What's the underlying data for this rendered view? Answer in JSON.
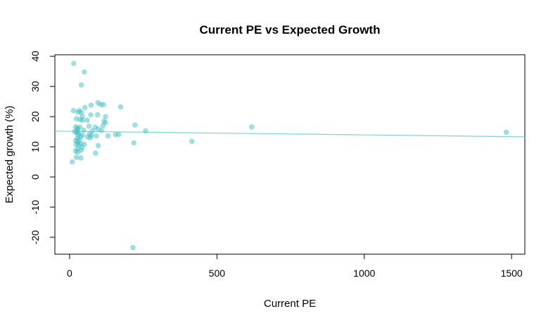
{
  "chart_data": {
    "type": "scatter",
    "title": "Current PE vs Expected Growth",
    "xlabel": "Current PE",
    "ylabel": "Expected growth (%)",
    "xlim": [
      -50,
      1545
    ],
    "ylim": [
      -25.6,
      40.5
    ],
    "xticks": [
      0,
      500,
      1000,
      1500
    ],
    "yticks": [
      -20,
      -10,
      0,
      10,
      20,
      30,
      40
    ],
    "xtick_labels": [
      "0",
      "500",
      "1000",
      "1500"
    ],
    "ytick_labels": [
      "-20",
      "-10",
      "0",
      "10",
      "20",
      "30",
      "40"
    ],
    "grid": false,
    "point_color": "#3fbfc4",
    "line_color": "#7fd3d6",
    "regression_line": {
      "x": [
        -50,
        1545
      ],
      "y": [
        15.2,
        13.3
      ]
    },
    "points": [
      {
        "x": 14,
        "y": 37.6
      },
      {
        "x": 50,
        "y": 34.8
      },
      {
        "x": 40,
        "y": 30.5
      },
      {
        "x": 96,
        "y": 24.6
      },
      {
        "x": 106,
        "y": 24.0
      },
      {
        "x": 115,
        "y": 24.0
      },
      {
        "x": 73,
        "y": 23.8
      },
      {
        "x": 52,
        "y": 23.0
      },
      {
        "x": 173,
        "y": 23.2
      },
      {
        "x": 13,
        "y": 22.0
      },
      {
        "x": 28,
        "y": 21.5
      },
      {
        "x": 34,
        "y": 22.0
      },
      {
        "x": 40,
        "y": 21.3
      },
      {
        "x": 72,
        "y": 20.6
      },
      {
        "x": 95,
        "y": 20.6
      },
      {
        "x": 122,
        "y": 20.0
      },
      {
        "x": 43,
        "y": 20.0
      },
      {
        "x": 23,
        "y": 19.3
      },
      {
        "x": 36,
        "y": 19.0
      },
      {
        "x": 44,
        "y": 18.8
      },
      {
        "x": 60,
        "y": 18.8
      },
      {
        "x": 117,
        "y": 18.5
      },
      {
        "x": 122,
        "y": 18.0
      },
      {
        "x": 113,
        "y": 17.0
      },
      {
        "x": 222,
        "y": 17.2
      },
      {
        "x": 618,
        "y": 16.6
      },
      {
        "x": 20,
        "y": 16.6
      },
      {
        "x": 27,
        "y": 16.2
      },
      {
        "x": 35,
        "y": 16.5
      },
      {
        "x": 66,
        "y": 16.8
      },
      {
        "x": 87,
        "y": 16.5
      },
      {
        "x": 97,
        "y": 15.9
      },
      {
        "x": 27,
        "y": 15.6
      },
      {
        "x": 48,
        "y": 15.5
      },
      {
        "x": 78,
        "y": 15.3
      },
      {
        "x": 108,
        "y": 15.4
      },
      {
        "x": 258,
        "y": 15.3
      },
      {
        "x": 1482,
        "y": 14.8
      },
      {
        "x": 17,
        "y": 15.0
      },
      {
        "x": 24,
        "y": 14.8
      },
      {
        "x": 31,
        "y": 14.6
      },
      {
        "x": 68,
        "y": 14.3
      },
      {
        "x": 156,
        "y": 14.0
      },
      {
        "x": 167,
        "y": 14.1
      },
      {
        "x": 28,
        "y": 14.0
      },
      {
        "x": 44,
        "y": 13.8
      },
      {
        "x": 74,
        "y": 13.8
      },
      {
        "x": 91,
        "y": 13.6
      },
      {
        "x": 130,
        "y": 13.6
      },
      {
        "x": 37,
        "y": 13.3
      },
      {
        "x": 61,
        "y": 13.3
      },
      {
        "x": 70,
        "y": 13.0
      },
      {
        "x": 26,
        "y": 12.8
      },
      {
        "x": 33,
        "y": 12.3
      },
      {
        "x": 21,
        "y": 12.0
      },
      {
        "x": 415,
        "y": 11.8
      },
      {
        "x": 28,
        "y": 11.5
      },
      {
        "x": 218,
        "y": 11.3
      },
      {
        "x": 38,
        "y": 11.1
      },
      {
        "x": 22,
        "y": 10.8
      },
      {
        "x": 50,
        "y": 10.8
      },
      {
        "x": 31,
        "y": 10.5
      },
      {
        "x": 97,
        "y": 10.4
      },
      {
        "x": 42,
        "y": 9.8
      },
      {
        "x": 26,
        "y": 9.3
      },
      {
        "x": 39,
        "y": 8.9
      },
      {
        "x": 20,
        "y": 8.6
      },
      {
        "x": 28,
        "y": 8.2
      },
      {
        "x": 88,
        "y": 7.9
      },
      {
        "x": 23,
        "y": 6.5
      },
      {
        "x": 38,
        "y": 6.3
      },
      {
        "x": 9,
        "y": 5.0
      },
      {
        "x": 215,
        "y": -23.4
      }
    ]
  }
}
